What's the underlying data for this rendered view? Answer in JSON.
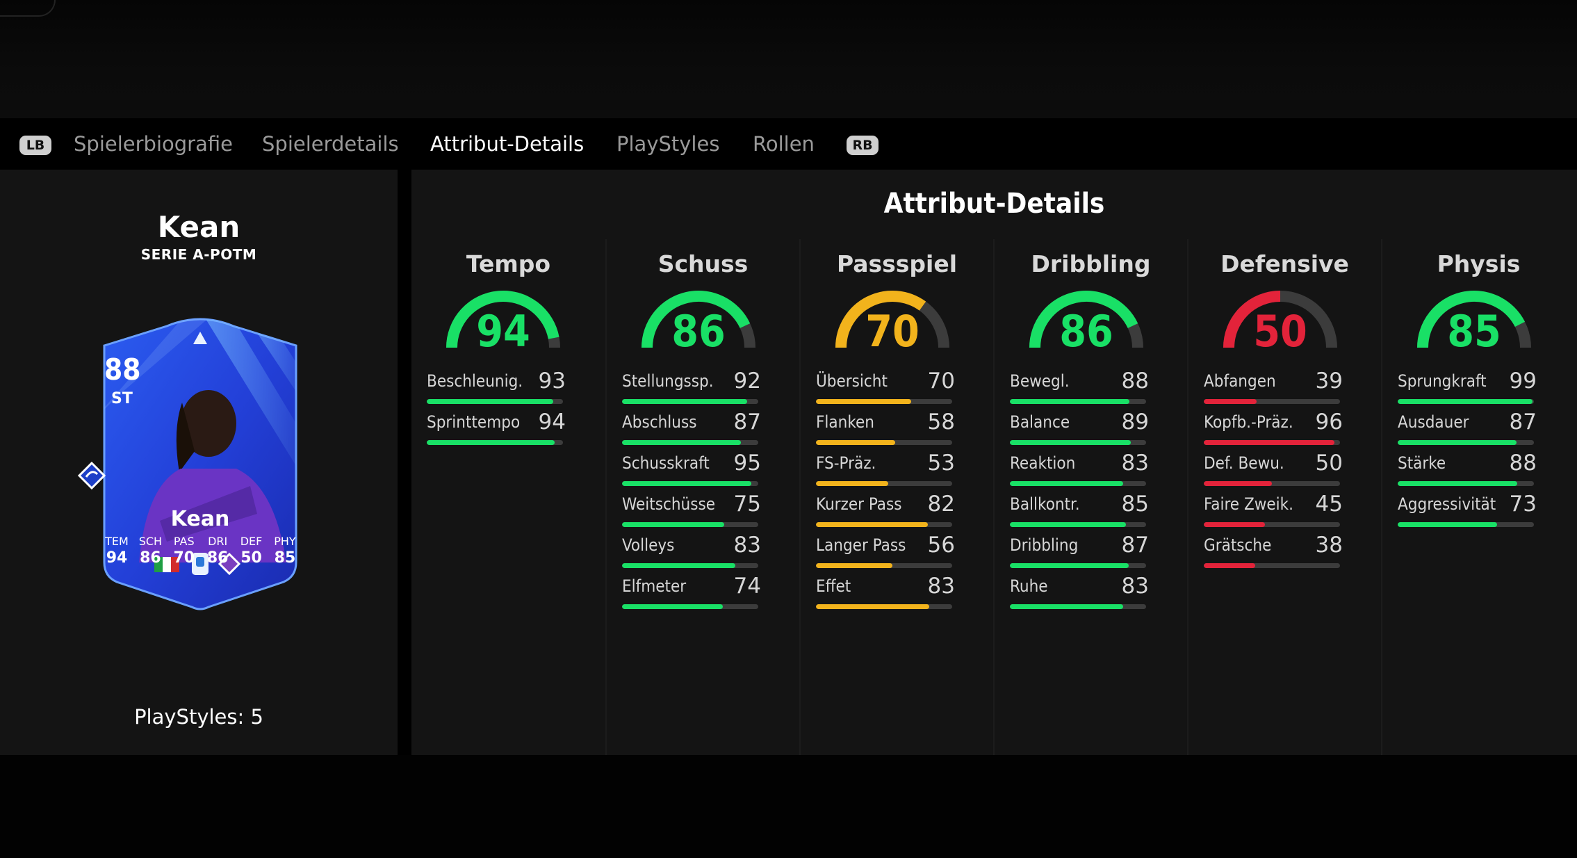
{
  "tabs": {
    "lb": "LB",
    "rb": "RB",
    "items": [
      {
        "label": "Spielerbiografie",
        "active": false
      },
      {
        "label": "Spielerdetails",
        "active": false
      },
      {
        "label": "Attribut-Details",
        "active": true
      },
      {
        "label": "PlayStyles",
        "active": false
      },
      {
        "label": "Rollen",
        "active": false
      }
    ]
  },
  "player": {
    "name": "Kean",
    "subtitle": "SERIE A-POTM",
    "playstyles": "PlayStyles: 5",
    "card": {
      "rating": "88",
      "position": "ST",
      "name": "Kean",
      "stats": [
        {
          "label": "TEM",
          "value": "94"
        },
        {
          "label": "SCH",
          "value": "86"
        },
        {
          "label": "PAS",
          "value": "70"
        },
        {
          "label": "DRI",
          "value": "86"
        },
        {
          "label": "DEF",
          "value": "50"
        },
        {
          "label": "PHY",
          "value": "85"
        }
      ]
    }
  },
  "colors": {
    "green": "#19e066",
    "yellow": "#f2b31c",
    "red": "#e3233a",
    "track": "#3c3c3c"
  },
  "panel": {
    "title": "Attribut-Details",
    "columns": [
      {
        "title": "Tempo",
        "value": 94,
        "tone": "green",
        "stats": [
          {
            "name": "Beschleunig.",
            "value": 93
          },
          {
            "name": "Sprinttempo",
            "value": 94
          }
        ]
      },
      {
        "title": "Schuss",
        "value": 86,
        "tone": "green",
        "stats": [
          {
            "name": "Stellungssp.",
            "value": 92
          },
          {
            "name": "Abschluss",
            "value": 87
          },
          {
            "name": "Schusskraft",
            "value": 95
          },
          {
            "name": "Weitschüsse",
            "value": 75
          },
          {
            "name": "Volleys",
            "value": 83
          },
          {
            "name": "Elfmeter",
            "value": 74
          }
        ]
      },
      {
        "title": "Passspiel",
        "value": 70,
        "tone": "yellow",
        "stats": [
          {
            "name": "Übersicht",
            "value": 70
          },
          {
            "name": "Flanken",
            "value": 58
          },
          {
            "name": "FS-Präz.",
            "value": 53
          },
          {
            "name": "Kurzer Pass",
            "value": 82
          },
          {
            "name": "Langer Pass",
            "value": 56
          },
          {
            "name": "Effet",
            "value": 83
          }
        ]
      },
      {
        "title": "Dribbling",
        "value": 86,
        "tone": "green",
        "stats": [
          {
            "name": "Bewegl.",
            "value": 88
          },
          {
            "name": "Balance",
            "value": 89
          },
          {
            "name": "Reaktion",
            "value": 83
          },
          {
            "name": "Ballkontr.",
            "value": 85
          },
          {
            "name": "Dribbling",
            "value": 87
          },
          {
            "name": "Ruhe",
            "value": 83
          }
        ]
      },
      {
        "title": "Defensive",
        "value": 50,
        "tone": "red",
        "stats": [
          {
            "name": "Abfangen",
            "value": 39
          },
          {
            "name": "Kopfb.-Präz.",
            "value": 96
          },
          {
            "name": "Def. Bewu.",
            "value": 50
          },
          {
            "name": "Faire Zweik.",
            "value": 45
          },
          {
            "name": "Grätsche",
            "value": 38
          }
        ]
      },
      {
        "title": "Physis",
        "value": 85,
        "tone": "green",
        "stats": [
          {
            "name": "Sprungkraft",
            "value": 99
          },
          {
            "name": "Ausdauer",
            "value": 87
          },
          {
            "name": "Stärke",
            "value": 88
          },
          {
            "name": "Aggressivität",
            "value": 73
          }
        ]
      }
    ]
  }
}
